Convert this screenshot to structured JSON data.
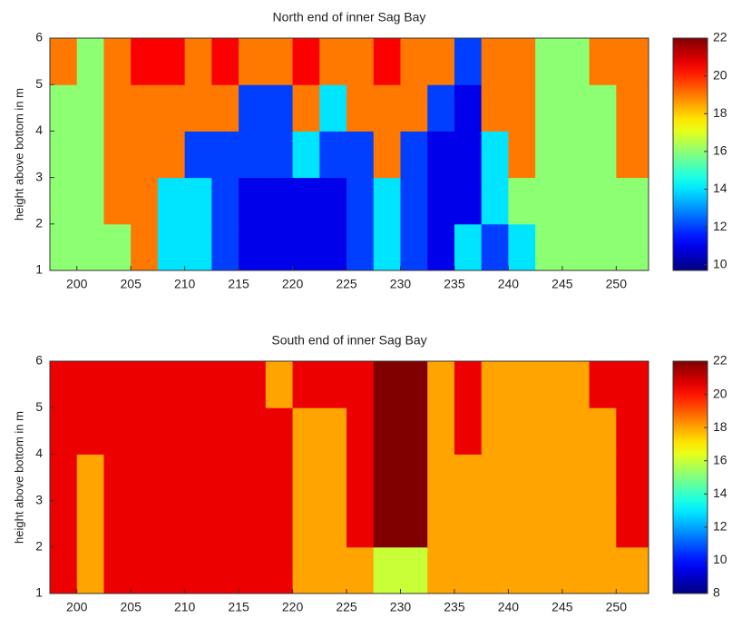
{
  "chart_data": [
    {
      "type": "contour",
      "title": "North end of inner Sag Bay",
      "y_label": "height above bottom in m",
      "colormap": "jet",
      "xlim": [
        197.5,
        253
      ],
      "xticks": [
        200,
        205,
        210,
        215,
        220,
        225,
        230,
        235,
        240,
        245,
        250
      ],
      "ylim": [
        1,
        6
      ],
      "yticks": [
        1,
        2,
        3,
        4,
        5,
        6
      ],
      "x_edges": [
        197.5,
        200,
        202.5,
        205,
        207.5,
        210,
        212.5,
        215,
        217.5,
        220,
        222.5,
        225,
        227.5,
        230,
        232.5,
        235,
        237.5,
        240,
        242.5,
        245,
        247.5,
        250,
        253
      ],
      "y_edges": [
        1,
        2,
        3,
        4,
        5,
        6
      ],
      "z": [
        [
          16,
          16,
          16,
          19,
          14,
          14,
          12,
          11,
          11,
          11,
          11,
          12,
          14,
          12,
          11,
          14,
          12,
          14,
          16,
          16,
          16,
          16
        ],
        [
          16,
          16,
          19,
          19,
          14,
          14,
          12,
          11,
          11,
          11,
          11,
          12,
          14,
          12,
          11,
          11,
          14,
          16,
          16,
          16,
          16,
          16
        ],
        [
          16,
          16,
          19,
          19,
          19,
          12,
          12,
          12,
          12,
          14,
          12,
          12,
          19,
          12,
          11,
          11,
          14,
          19,
          16,
          16,
          16,
          19
        ],
        [
          16,
          16,
          19,
          19,
          19,
          19,
          19,
          12,
          12,
          19,
          14,
          19,
          19,
          19,
          12,
          11,
          19,
          19,
          16,
          16,
          16,
          19
        ],
        [
          19,
          16,
          19,
          20.5,
          20.5,
          19,
          20.5,
          19,
          19,
          20.5,
          19,
          19,
          20.5,
          19,
          19,
          12,
          19,
          19,
          16,
          16,
          19,
          19
        ]
      ],
      "clim": [
        9.7,
        22
      ],
      "cticks": [
        10,
        12,
        14,
        16,
        18,
        20,
        22
      ]
    },
    {
      "type": "contour",
      "title": "South end of inner Sag Bay",
      "y_label": "height above bottom in m",
      "colormap": "jet",
      "xlim": [
        197.5,
        253
      ],
      "xticks": [
        200,
        205,
        210,
        215,
        220,
        225,
        230,
        235,
        240,
        245,
        250
      ],
      "ylim": [
        1,
        6
      ],
      "yticks": [
        1,
        2,
        3,
        4,
        5,
        6
      ],
      "x_edges": [
        197.5,
        200,
        202.5,
        205,
        207.5,
        210,
        212.5,
        215,
        217.5,
        220,
        222.5,
        225,
        227.5,
        230,
        232.5,
        235,
        237.5,
        240,
        242.5,
        245,
        247.5,
        250,
        253
      ],
      "y_edges": [
        1,
        2,
        3,
        4,
        5,
        6
      ],
      "z": [
        [
          20.5,
          18,
          20.5,
          20.5,
          20.5,
          20.5,
          20.5,
          20.5,
          20.5,
          18,
          18,
          18,
          16,
          16,
          18,
          18,
          18,
          18,
          18,
          18,
          18,
          18
        ],
        [
          20.5,
          18,
          20.5,
          20.5,
          20.5,
          20.5,
          20.5,
          20.5,
          20.5,
          18,
          18,
          20.5,
          22,
          22,
          18,
          18,
          18,
          18,
          18,
          18,
          18,
          20.5
        ],
        [
          20.5,
          18,
          20.5,
          20.5,
          20.5,
          20.5,
          20.5,
          20.5,
          20.5,
          18,
          18,
          20.5,
          22,
          22,
          18,
          18,
          18,
          18,
          18,
          18,
          18,
          20.5
        ],
        [
          20.5,
          20.5,
          20.5,
          20.5,
          20.5,
          20.5,
          20.5,
          20.5,
          20.5,
          18,
          18,
          20.5,
          22,
          22,
          18,
          20.5,
          18,
          18,
          18,
          18,
          18,
          20.5
        ],
        [
          20.5,
          20.5,
          20.5,
          20.5,
          20.5,
          20.5,
          20.5,
          20.5,
          18,
          20.5,
          20.5,
          20.5,
          22,
          22,
          18,
          20.5,
          18,
          18,
          18,
          18,
          20.5,
          20.5
        ]
      ],
      "clim": [
        8,
        22
      ],
      "cticks": [
        8,
        10,
        12,
        14,
        16,
        18,
        20,
        22
      ]
    }
  ]
}
